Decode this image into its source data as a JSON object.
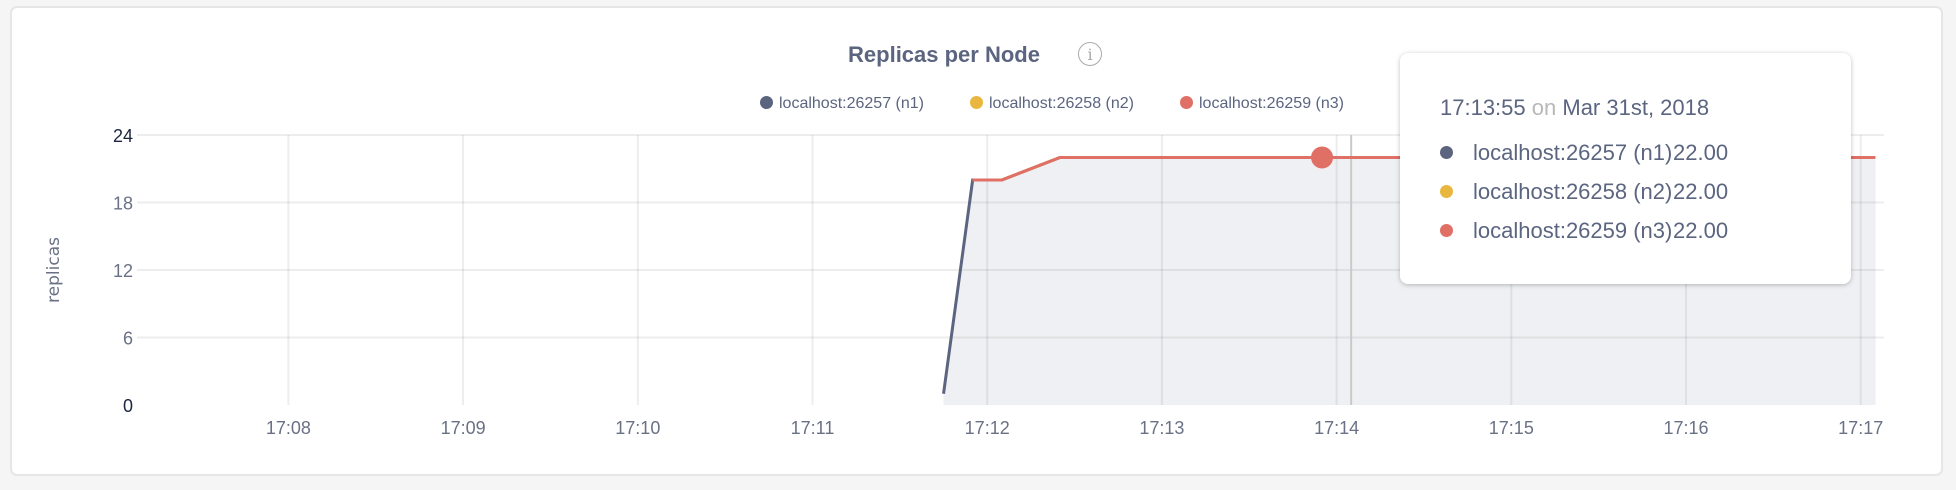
{
  "chart_data": {
    "type": "area",
    "title": "Replicas per Node",
    "ylabel": "replicas",
    "xlabel": "",
    "ylim": [
      0,
      24
    ],
    "yticks": [
      "0",
      "6",
      "12",
      "18",
      "24"
    ],
    "xlim": [
      "17:07:08",
      "17:17:08"
    ],
    "xticks": [
      "17:08",
      "17:09",
      "17:10",
      "17:11",
      "17:12",
      "17:13",
      "17:14",
      "17:15",
      "17:16",
      "17:17"
    ],
    "grid": true,
    "legend_position": "top-right",
    "series": [
      {
        "name": "localhost:26257 (n1)",
        "color": "#5b6580",
        "fill": "#eff0f3",
        "points": [
          [
            "17:11:45",
            1
          ],
          [
            "17:11:55",
            20
          ],
          [
            "17:12:05",
            20
          ],
          [
            "17:12:25",
            22
          ],
          [
            "17:17:05",
            22
          ]
        ]
      },
      {
        "name": "localhost:26258 (n2)",
        "color": "#e9b73f",
        "fill": "#ecdfd9",
        "points": [
          [
            "17:11:55",
            20
          ],
          [
            "17:12:05",
            20
          ],
          [
            "17:12:25",
            22
          ],
          [
            "17:17:05",
            22
          ]
        ]
      },
      {
        "name": "localhost:26259 (n3)",
        "color": "#e06f66",
        "fill": "#ecdfd9",
        "points": [
          [
            "17:11:55",
            20
          ],
          [
            "17:12:05",
            20
          ],
          [
            "17:12:25",
            22
          ],
          [
            "17:17:05",
            22
          ]
        ]
      }
    ],
    "hover_point": {
      "time": "17:13:55",
      "value": 22,
      "color": "#e06f66"
    },
    "crosshair_time": "17:14:05"
  },
  "tooltip": {
    "time": "17:13:55",
    "on": "on",
    "date": "Mar 31st, 2018",
    "rows": [
      {
        "name": "localhost:26257 (n1)",
        "value": "22.00",
        "color": "#5b6580"
      },
      {
        "name": "localhost:26258 (n2)",
        "value": "22.00",
        "color": "#e9b73f"
      },
      {
        "name": "localhost:26259 (n3)",
        "value": "22.00",
        "color": "#e06f66"
      }
    ]
  },
  "info_icon": "info-circle-icon",
  "info_glyph": "i"
}
